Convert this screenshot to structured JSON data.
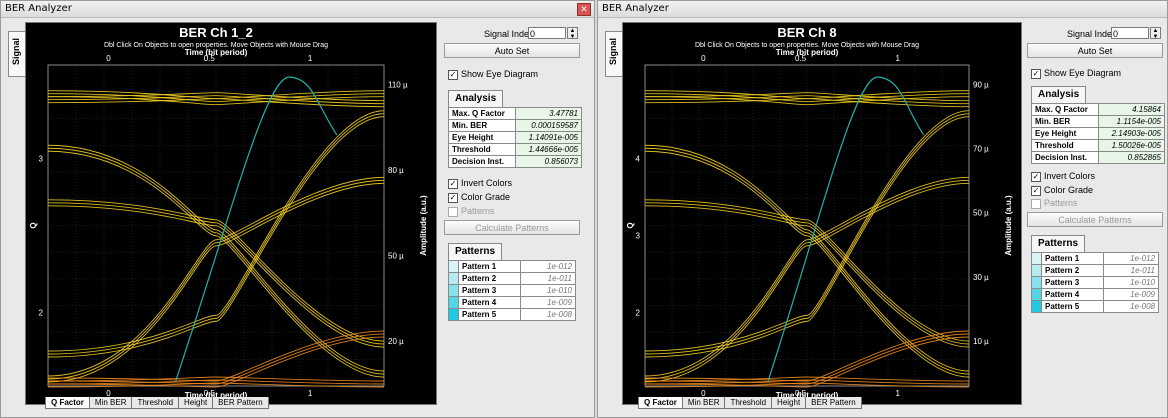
{
  "windows": [
    {
      "title": "BER Analyzer",
      "side_tab": "Signal",
      "chart_title": "BER Ch 1_2",
      "hint": "Dbl Click On Objects to open properties.  Move Objects with Mouse Drag",
      "top_axis_title": "Time (bit period)",
      "bottom_axis_title": "Time (bit period)",
      "left_axis_title": "Q",
      "right_axis_title": "Amplitude (a.u.)",
      "signal_index_label": "Signal Index:",
      "signal_index_value": "0",
      "autoset_label": "Auto Set",
      "show_eye_label": "Show Eye Diagram",
      "analysis_tab": "Analysis",
      "analysis": [
        {
          "key": "Max. Q Factor",
          "value": "3.47781"
        },
        {
          "key": "Min. BER",
          "value": "0.000159587"
        },
        {
          "key": "Eye Height",
          "value": "1.14091e-005"
        },
        {
          "key": "Threshold",
          "value": "1.44666e-005"
        },
        {
          "key": "Decision Inst.",
          "value": "0.856073"
        }
      ],
      "invert_colors_label": "Invert Colors",
      "color_grade_label": "Color Grade",
      "patterns_check_label": "Patterns",
      "calc_patterns_label": "Calculate Patterns",
      "patterns_tab": "Patterns",
      "patterns": [
        {
          "key": "Pattern 1",
          "value": "1e-012"
        },
        {
          "key": "Pattern 2",
          "value": "1e-011"
        },
        {
          "key": "Pattern 3",
          "value": "1e-010"
        },
        {
          "key": "Pattern 4",
          "value": "1e-009"
        },
        {
          "key": "Pattern 5",
          "value": "1e-008"
        }
      ],
      "bottom_tabs": [
        "Q Factor",
        "Min BER",
        "Threshold",
        "Height",
        "BER Pattern"
      ],
      "x_ticks_top": [
        "0",
        "0.5",
        "1"
      ],
      "x_ticks_bottom": [
        "0",
        "0.5",
        "1"
      ],
      "y_ticks_left": [
        "3",
        "2"
      ],
      "y_ticks_right": [
        "110 µ",
        "80 µ",
        "50 µ",
        "20 µ"
      ]
    },
    {
      "title": "BER Analyzer",
      "side_tab": "Signal",
      "chart_title": "BER Ch 8",
      "hint": "Dbl Click On Objects to open properties.  Move Objects with Mouse Drag",
      "top_axis_title": "Time (bit period)",
      "bottom_axis_title": "Time (bit period)",
      "left_axis_title": "Q",
      "right_axis_title": "Amplitude (a.u.)",
      "signal_index_label": "Signal Index:",
      "signal_index_value": "0",
      "autoset_label": "Auto Set",
      "show_eye_label": "Show Eye Diagram",
      "analysis_tab": "Analysis",
      "analysis": [
        {
          "key": "Max. Q Factor",
          "value": "4.15864"
        },
        {
          "key": "Min. BER",
          "value": "1.1154e-005"
        },
        {
          "key": "Eye Height",
          "value": "2.14903e-005"
        },
        {
          "key": "Threshold",
          "value": "1.50026e-005"
        },
        {
          "key": "Decision Inst.",
          "value": "0.852865"
        }
      ],
      "invert_colors_label": "Invert Colors",
      "color_grade_label": "Color Grade",
      "patterns_check_label": "Patterns",
      "calc_patterns_label": "Calculate Patterns",
      "patterns_tab": "Patterns",
      "patterns": [
        {
          "key": "Pattern 1",
          "value": "1e-012"
        },
        {
          "key": "Pattern 2",
          "value": "1e-011"
        },
        {
          "key": "Pattern 3",
          "value": "1e-010"
        },
        {
          "key": "Pattern 4",
          "value": "1e-009"
        },
        {
          "key": "Pattern 5",
          "value": "1e-008"
        }
      ],
      "bottom_tabs": [
        "Q Factor",
        "Min BER",
        "Threshold",
        "Height",
        "BER Pattern"
      ],
      "x_ticks_top": [
        "0",
        "0.5",
        "1"
      ],
      "x_ticks_bottom": [
        "0",
        "0.5",
        "1"
      ],
      "y_ticks_left": [
        "4",
        "3",
        "2"
      ],
      "y_ticks_right": [
        "90 µ",
        "70 µ",
        "50 µ",
        "30 µ",
        "10 µ"
      ]
    }
  ],
  "colors": {
    "plot_bg": "#000000",
    "eye_trace": "#f5d020",
    "eye_trace_hot": "#f08a1c",
    "q_curve": "#20b2aa",
    "pattern_swatches": [
      "#d9f4f7",
      "#b4ecf2",
      "#86e2ec",
      "#52d6e6",
      "#1fc9e0"
    ]
  }
}
